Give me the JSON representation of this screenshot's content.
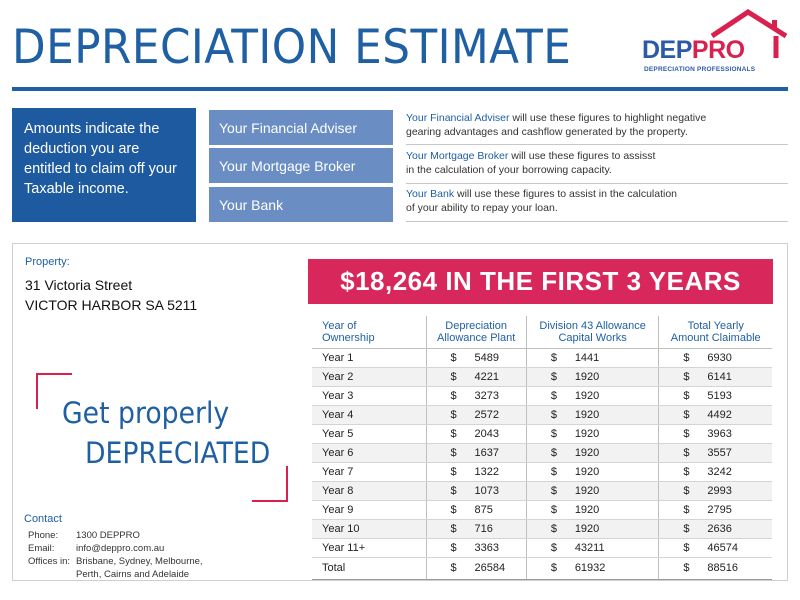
{
  "header": {
    "title": "DEPRECIATION ESTIMATE",
    "logo_main": "DEP",
    "logo_accent": "PRO",
    "logo_tagline": "DEPRECIATION PROFESSIONALS"
  },
  "intro": {
    "text": "Amounts indicate the deduction you are entitled to claim off your Taxable income."
  },
  "roles": [
    {
      "label": "Your Financial Adviser",
      "desc_highlight": "Your Financial Adviser",
      "desc_line1": " will use these figures to highlight negative",
      "desc_line2": "gearing advantages and cashflow generated by the property."
    },
    {
      "label": "Your Mortgage Broker",
      "desc_highlight": "Your Mortgage Broker",
      "desc_line1": " will use these figures to assisst",
      "desc_line2": "in the calculation of your borrowing capacity."
    },
    {
      "label": "Your Bank",
      "desc_highlight": "Your Bank",
      "desc_line1": " will use these figures to assist in the calculation",
      "desc_line2": "of your ability to repay your loan."
    }
  ],
  "property": {
    "label": "Property:",
    "line1": "31 Victoria Street",
    "line2": "VICTOR HARBOR SA 5211"
  },
  "tagline": {
    "line1": "Get properly",
    "line2": "DEPRECIATED"
  },
  "contact": {
    "label": "Contact",
    "phone_key": "Phone:",
    "phone": "1300 DEPPRO",
    "email_key": "Email:",
    "email": "info@deppro.com.au",
    "offices_key": "Offices in:",
    "offices_line1": "Brisbane, Sydney, Melbourne,",
    "offices_line2": "Perth, Cairns and Adelaide"
  },
  "banner": "$18,264 IN THE FIRST 3 YEARS",
  "table": {
    "headers": [
      [
        "Year of",
        "Ownership"
      ],
      [
        "Depreciation",
        "Allowance Plant"
      ],
      [
        "Division 43 Allowance",
        "Capital Works"
      ],
      [
        "Total Yearly",
        "Amount Claimable"
      ]
    ],
    "currency": "$",
    "rows": [
      {
        "year": "Year 1",
        "plant": "5489",
        "capital": "1441",
        "total": "6930"
      },
      {
        "year": "Year 2",
        "plant": "4221",
        "capital": "1920",
        "total": "6141"
      },
      {
        "year": "Year 3",
        "plant": "3273",
        "capital": "1920",
        "total": "5193"
      },
      {
        "year": "Year 4",
        "plant": "2572",
        "capital": "1920",
        "total": "4492"
      },
      {
        "year": "Year 5",
        "plant": "2043",
        "capital": "1920",
        "total": "3963"
      },
      {
        "year": "Year 6",
        "plant": "1637",
        "capital": "1920",
        "total": "3557"
      },
      {
        "year": "Year 7",
        "plant": "1322",
        "capital": "1920",
        "total": "3242"
      },
      {
        "year": "Year 8",
        "plant": "1073",
        "capital": "1920",
        "total": "2993"
      },
      {
        "year": "Year 9",
        "plant": "875",
        "capital": "1920",
        "total": "2795"
      },
      {
        "year": "Year 10",
        "plant": "716",
        "capital": "1920",
        "total": "2636"
      },
      {
        "year": "Year 11+",
        "plant": "3363",
        "capital": "43211",
        "total": "46574"
      }
    ],
    "total": {
      "year": "Total",
      "plant": "26584",
      "capital": "61932",
      "total": "88516"
    }
  },
  "colors": {
    "brand_blue": "#1f5fa3",
    "button_blue": "#6a8ec4",
    "accent_pink": "#d8275a"
  }
}
